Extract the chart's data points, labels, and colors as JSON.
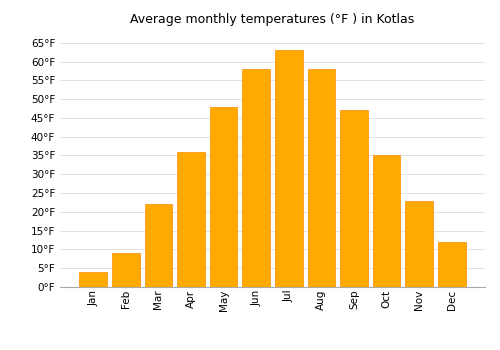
{
  "title": "Average monthly temperatures (°F ) in Kotlas",
  "months": [
    "Jan",
    "Feb",
    "Mar",
    "Apr",
    "May",
    "Jun",
    "Jul",
    "Aug",
    "Sep",
    "Oct",
    "Nov",
    "Dec"
  ],
  "values": [
    4,
    9,
    22,
    36,
    48,
    58,
    63,
    58,
    47,
    35,
    23,
    12
  ],
  "bar_color": "#FFAA00",
  "bar_edge_color": "#FF8C00",
  "background_color": "#ffffff",
  "grid_color": "#dddddd",
  "ylim": [
    0,
    68
  ],
  "yticks": [
    0,
    5,
    10,
    15,
    20,
    25,
    30,
    35,
    40,
    45,
    50,
    55,
    60,
    65
  ],
  "title_fontsize": 9,
  "tick_fontsize": 7.5,
  "font_family": "DejaVu Sans"
}
